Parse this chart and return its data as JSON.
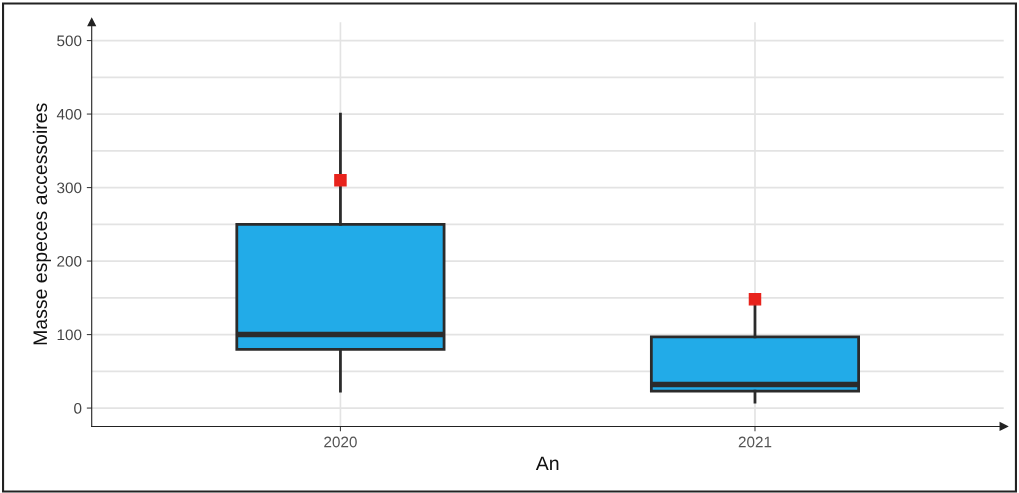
{
  "chart_data": {
    "type": "box",
    "xlabel": "An",
    "ylabel": "Masse especes accessoires",
    "categories": [
      "2020",
      "2021"
    ],
    "boxes": [
      {
        "low": 23,
        "q1": 80,
        "median": 100,
        "q3": 250,
        "high": 400,
        "mean": 310
      },
      {
        "low": 8,
        "q1": 23,
        "median": 32,
        "q3": 97,
        "high": 148,
        "mean": 148
      }
    ],
    "color": "#22abe8",
    "marker": "square",
    "ylim": [
      -25,
      525
    ],
    "yticks": [
      0,
      100,
      200,
      300,
      400,
      500
    ],
    "grid": true
  }
}
